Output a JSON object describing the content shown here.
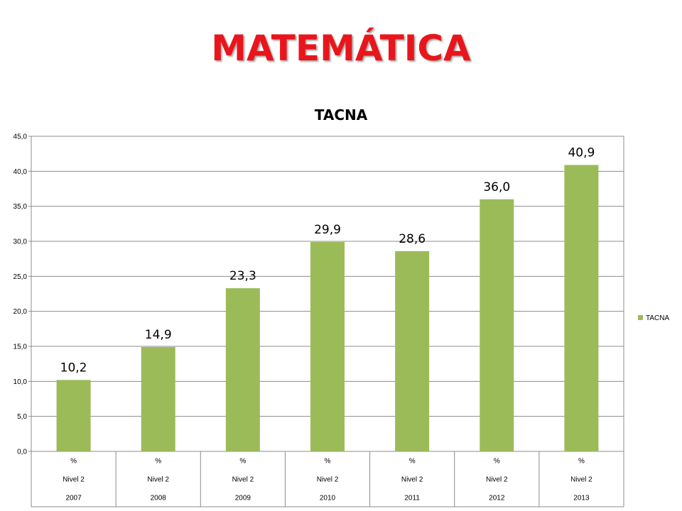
{
  "slide": {
    "title": "MATEMÁTICA"
  },
  "chart_data": {
    "type": "bar",
    "title": "TACNA",
    "xlabel": "",
    "ylabel": "",
    "ylim": [
      0,
      45
    ],
    "ytick_step": 5,
    "ytick_labels": [
      "0,0",
      "5,0",
      "10,0",
      "15,0",
      "20,0",
      "25,0",
      "30,0",
      "35,0",
      "40,0",
      "45,0"
    ],
    "grid": true,
    "legend": {
      "position": "right",
      "entries": [
        "TACNA"
      ]
    },
    "category_rows": [
      [
        "%",
        "%",
        "%",
        "%",
        "%",
        "%",
        "%"
      ],
      [
        "Nivel 2",
        "Nivel 2",
        "Nivel 2",
        "Nivel 2",
        "Nivel 2",
        "Nivel 2",
        "Nivel 2"
      ],
      [
        "2007",
        "2008",
        "2009",
        "2010",
        "2011",
        "2012",
        "2013"
      ]
    ],
    "series": [
      {
        "name": "TACNA",
        "color": "#9bbb59",
        "values": [
          10.2,
          14.9,
          23.3,
          29.9,
          28.6,
          36.0,
          40.9
        ],
        "data_labels": [
          "10,2",
          "14,9",
          "23,3",
          "29,9",
          "28,6",
          "36,0",
          "40,9"
        ]
      }
    ]
  }
}
